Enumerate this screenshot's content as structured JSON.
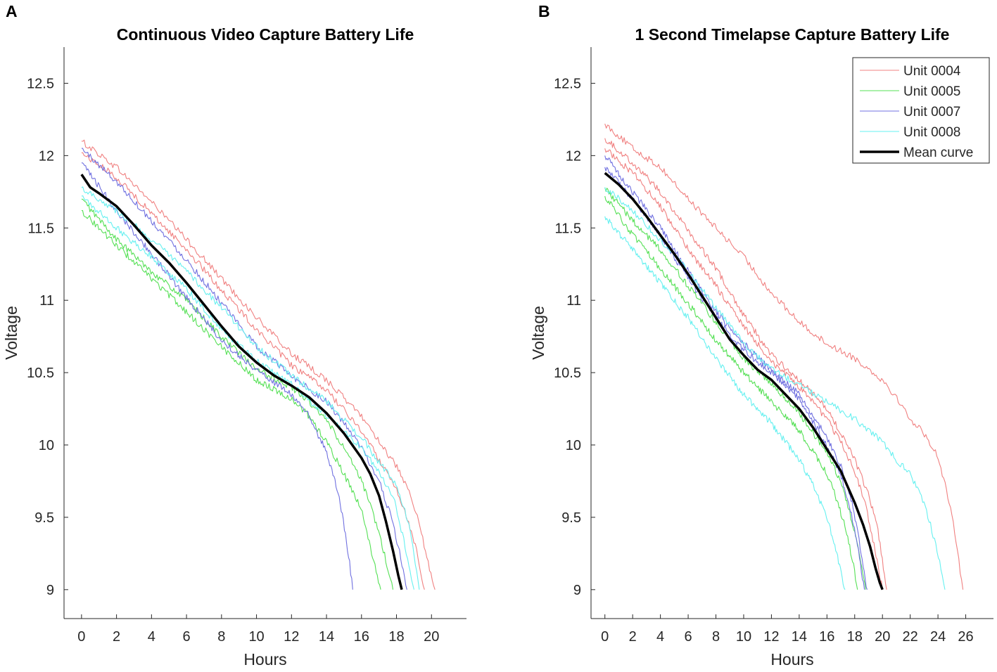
{
  "chart_data": [
    {
      "panel_letter": "A",
      "type": "line",
      "title": "Continuous Video Capture Battery Life",
      "xlabel": "Hours",
      "ylabel": "Voltage",
      "xlim": [
        -1,
        22
      ],
      "ylim": [
        8.8,
        12.75
      ],
      "xticks": [
        0,
        2,
        4,
        6,
        8,
        10,
        12,
        14,
        16,
        18,
        20
      ],
      "yticks": [
        9,
        9.5,
        10,
        10.5,
        11,
        11.5,
        12,
        12.5
      ],
      "ytick_labels": [
        "9",
        "9.5",
        "10",
        "10.5",
        "11",
        "11.5",
        "12",
        "12.5"
      ],
      "series": [
        {
          "name": "Unit 0004",
          "color": "#f08080",
          "x": [
            0,
            2,
            4,
            6,
            8,
            10,
            12,
            14,
            16,
            17,
            18,
            18.8,
            19.3,
            19.7,
            20.0,
            20.2
          ],
          "y": [
            12.1,
            11.92,
            11.68,
            11.42,
            11.15,
            10.88,
            10.63,
            10.45,
            10.2,
            10.03,
            9.85,
            9.65,
            9.45,
            9.25,
            9.08,
            9.0
          ]
        },
        {
          "name": "Unit 0004",
          "color": "#f08080",
          "x": [
            0,
            2,
            4,
            6,
            8,
            10,
            12,
            14,
            16,
            17,
            18,
            18.6,
            19.1,
            19.4,
            19.6
          ],
          "y": [
            12.02,
            11.85,
            11.6,
            11.35,
            11.07,
            10.8,
            10.55,
            10.38,
            10.1,
            9.9,
            9.7,
            9.5,
            9.3,
            9.12,
            9.0
          ]
        },
        {
          "name": "Unit 0005",
          "color": "#55e055",
          "x": [
            0,
            2,
            4,
            6,
            8,
            10,
            12,
            13,
            14,
            15,
            16,
            16.6,
            17.1,
            17.5,
            17.8
          ],
          "y": [
            11.7,
            11.42,
            11.2,
            11.0,
            10.75,
            10.52,
            10.4,
            10.3,
            10.17,
            9.98,
            9.75,
            9.55,
            9.35,
            9.15,
            9.0
          ]
        },
        {
          "name": "Unit 0005",
          "color": "#55e055",
          "x": [
            0,
            2,
            4,
            6,
            8,
            10,
            12,
            13,
            14,
            15,
            16,
            16.4,
            16.8,
            17.1
          ],
          "y": [
            11.62,
            11.38,
            11.15,
            10.92,
            10.68,
            10.45,
            10.32,
            10.2,
            10.02,
            9.8,
            9.55,
            9.35,
            9.15,
            9.0
          ]
        },
        {
          "name": "Unit 0007",
          "color": "#7070e0",
          "x": [
            0,
            2,
            4,
            6,
            8,
            10,
            12,
            14,
            15,
            16,
            17,
            17.7,
            18.1,
            18.4,
            18.6
          ],
          "y": [
            12.05,
            11.82,
            11.55,
            11.28,
            10.98,
            10.68,
            10.48,
            10.3,
            10.15,
            9.98,
            9.75,
            9.5,
            9.3,
            9.12,
            9.0
          ]
        },
        {
          "name": "Unit 0007",
          "color": "#7070e0",
          "x": [
            0,
            2,
            4,
            6,
            8,
            10,
            12,
            13,
            14,
            14.6,
            15.0,
            15.3,
            15.5
          ],
          "y": [
            11.95,
            11.62,
            11.32,
            11.02,
            10.72,
            10.52,
            10.35,
            10.2,
            9.95,
            9.7,
            9.45,
            9.2,
            9.0
          ]
        },
        {
          "name": "Unit 0008",
          "color": "#66f0f0",
          "x": [
            0,
            2,
            4,
            6,
            8,
            10,
            12,
            14,
            16,
            17,
            18,
            18.6,
            19.0,
            19.3
          ],
          "y": [
            11.78,
            11.62,
            11.42,
            11.2,
            10.95,
            10.68,
            10.48,
            10.3,
            10.05,
            9.88,
            9.72,
            9.5,
            9.25,
            9.0
          ]
        },
        {
          "name": "Unit 0008",
          "color": "#66f0f0",
          "x": [
            0,
            2,
            4,
            6,
            8,
            10,
            12,
            14,
            16,
            17,
            17.8,
            18.3,
            18.7,
            19.0
          ],
          "y": [
            11.72,
            11.5,
            11.3,
            11.08,
            10.8,
            10.58,
            10.42,
            10.2,
            9.98,
            9.82,
            9.65,
            9.4,
            9.18,
            9.0
          ]
        },
        {
          "name": "Mean curve",
          "color": "#000000",
          "x": [
            0,
            0.5,
            1,
            2,
            3,
            4,
            5,
            6,
            7,
            8,
            9,
            10,
            11,
            12,
            13,
            14,
            15,
            16,
            16.5,
            17,
            17.4,
            17.8,
            18.1,
            18.3
          ],
          "y": [
            11.87,
            11.78,
            11.74,
            11.65,
            11.52,
            11.38,
            11.26,
            11.12,
            10.97,
            10.82,
            10.68,
            10.57,
            10.48,
            10.41,
            10.33,
            10.22,
            10.08,
            9.91,
            9.8,
            9.65,
            9.47,
            9.27,
            9.1,
            9.0
          ]
        }
      ]
    },
    {
      "panel_letter": "B",
      "type": "line",
      "title": "1 Second Timelapse Capture Battery Life",
      "xlabel": "Hours",
      "ylabel": "Voltage",
      "xlim": [
        -1,
        28
      ],
      "ylim": [
        8.8,
        12.75
      ],
      "xticks": [
        0,
        2,
        4,
        6,
        8,
        10,
        12,
        14,
        16,
        18,
        20,
        22,
        24,
        26
      ],
      "yticks": [
        9,
        9.5,
        10,
        10.5,
        11,
        11.5,
        12,
        12.5
      ],
      "ytick_labels": [
        "9",
        "9.5",
        "10",
        "10.5",
        "11",
        "11.5",
        "12",
        "12.5"
      ],
      "legend": {
        "position": "top-right",
        "entries": [
          {
            "label": "Unit 0004",
            "color": "#f08080"
          },
          {
            "label": "Unit 0005",
            "color": "#55e055"
          },
          {
            "label": "Unit 0007",
            "color": "#7070e0"
          },
          {
            "label": "Unit 0008",
            "color": "#66f0f0"
          },
          {
            "label": "Mean curve",
            "color": "#000000"
          }
        ]
      },
      "series": [
        {
          "name": "Unit 0004",
          "color": "#f08080",
          "x": [
            0,
            2,
            4,
            6,
            8,
            10,
            12,
            14,
            16,
            18,
            20,
            21,
            22,
            23,
            24,
            24.6,
            25.1,
            25.5,
            25.8
          ],
          "y": [
            12.22,
            12.05,
            11.92,
            11.7,
            11.5,
            11.3,
            11.05,
            10.85,
            10.7,
            10.6,
            10.45,
            10.33,
            10.18,
            10.08,
            9.92,
            9.7,
            9.45,
            9.2,
            9.0
          ]
        },
        {
          "name": "Unit 0004",
          "color": "#f08080",
          "x": [
            0,
            2,
            4,
            6,
            8,
            10,
            12,
            14,
            16,
            17,
            18,
            19,
            19.6,
            20.0,
            20.3
          ],
          "y": [
            12.12,
            11.95,
            11.75,
            11.48,
            11.22,
            10.9,
            10.62,
            10.45,
            10.25,
            10.08,
            9.9,
            9.65,
            9.45,
            9.2,
            9.0
          ]
        },
        {
          "name": "Unit 0004",
          "color": "#f08080",
          "x": [
            0,
            2,
            4,
            6,
            8,
            10,
            12,
            14,
            16,
            17,
            18,
            18.8,
            19.3,
            19.7,
            20.0
          ],
          "y": [
            12.05,
            11.88,
            11.65,
            11.35,
            11.1,
            10.82,
            10.58,
            10.4,
            10.18,
            10.02,
            9.82,
            9.58,
            9.35,
            9.15,
            9.0
          ]
        },
        {
          "name": "Unit 0005",
          "color": "#55e055",
          "x": [
            0,
            2,
            4,
            6,
            8,
            10,
            12,
            14,
            16,
            17,
            17.6,
            18.1,
            18.5,
            18.8
          ],
          "y": [
            11.78,
            11.55,
            11.35,
            11.1,
            10.85,
            10.6,
            10.42,
            10.22,
            9.95,
            9.75,
            9.55,
            9.35,
            9.15,
            9.0
          ]
        },
        {
          "name": "Unit 0005",
          "color": "#55e055",
          "x": [
            0,
            2,
            4,
            6,
            8,
            10,
            12,
            14,
            16,
            16.8,
            17.4,
            17.9,
            18.2
          ],
          "y": [
            11.72,
            11.45,
            11.22,
            10.98,
            10.72,
            10.5,
            10.3,
            10.1,
            9.8,
            9.6,
            9.4,
            9.18,
            9.0
          ]
        },
        {
          "name": "Unit 0007",
          "color": "#7070e0",
          "x": [
            0,
            2,
            4,
            6,
            8,
            10,
            12,
            14,
            16,
            17,
            17.8,
            18.3,
            18.6,
            18.9
          ],
          "y": [
            12.0,
            11.75,
            11.5,
            11.2,
            10.92,
            10.7,
            10.52,
            10.35,
            10.05,
            9.85,
            9.6,
            9.35,
            9.15,
            9.0
          ]
        },
        {
          "name": "Unit 0007",
          "color": "#7070e0",
          "x": [
            0,
            2,
            4,
            6,
            8,
            10,
            12,
            14,
            16,
            17,
            17.7,
            18.2,
            18.5,
            18.7
          ],
          "y": [
            11.92,
            11.7,
            11.45,
            11.15,
            10.88,
            10.65,
            10.5,
            10.32,
            10.0,
            9.8,
            9.55,
            9.3,
            9.12,
            9.0
          ]
        },
        {
          "name": "Unit 0008",
          "color": "#66f0f0",
          "x": [
            0,
            2,
            4,
            6,
            8,
            10,
            12,
            14,
            16,
            18,
            20,
            21,
            22,
            23,
            23.6,
            24.1,
            24.5
          ],
          "y": [
            11.78,
            11.62,
            11.42,
            11.2,
            10.95,
            10.7,
            10.52,
            10.42,
            10.3,
            10.18,
            10.02,
            9.9,
            9.8,
            9.6,
            9.4,
            9.2,
            9.0
          ]
        },
        {
          "name": "Unit 0008",
          "color": "#66f0f0",
          "x": [
            0,
            2,
            4,
            6,
            8,
            10,
            12,
            14,
            15,
            16,
            16.6,
            17.0,
            17.3
          ],
          "y": [
            11.58,
            11.35,
            11.12,
            10.88,
            10.6,
            10.35,
            10.15,
            9.9,
            9.72,
            9.5,
            9.3,
            9.12,
            9.0
          ]
        },
        {
          "name": "Mean curve",
          "color": "#000000",
          "x": [
            0,
            1,
            2,
            3,
            4,
            5,
            6,
            7,
            8,
            9,
            10,
            11,
            12,
            13,
            14,
            15,
            16,
            17,
            18,
            18.6,
            19.1,
            19.5,
            19.8,
            20.0
          ],
          "y": [
            11.88,
            11.8,
            11.7,
            11.58,
            11.45,
            11.32,
            11.18,
            11.03,
            10.88,
            10.73,
            10.62,
            10.52,
            10.45,
            10.35,
            10.25,
            10.12,
            9.97,
            9.82,
            9.6,
            9.45,
            9.3,
            9.15,
            9.05,
            9.0
          ]
        }
      ]
    }
  ]
}
